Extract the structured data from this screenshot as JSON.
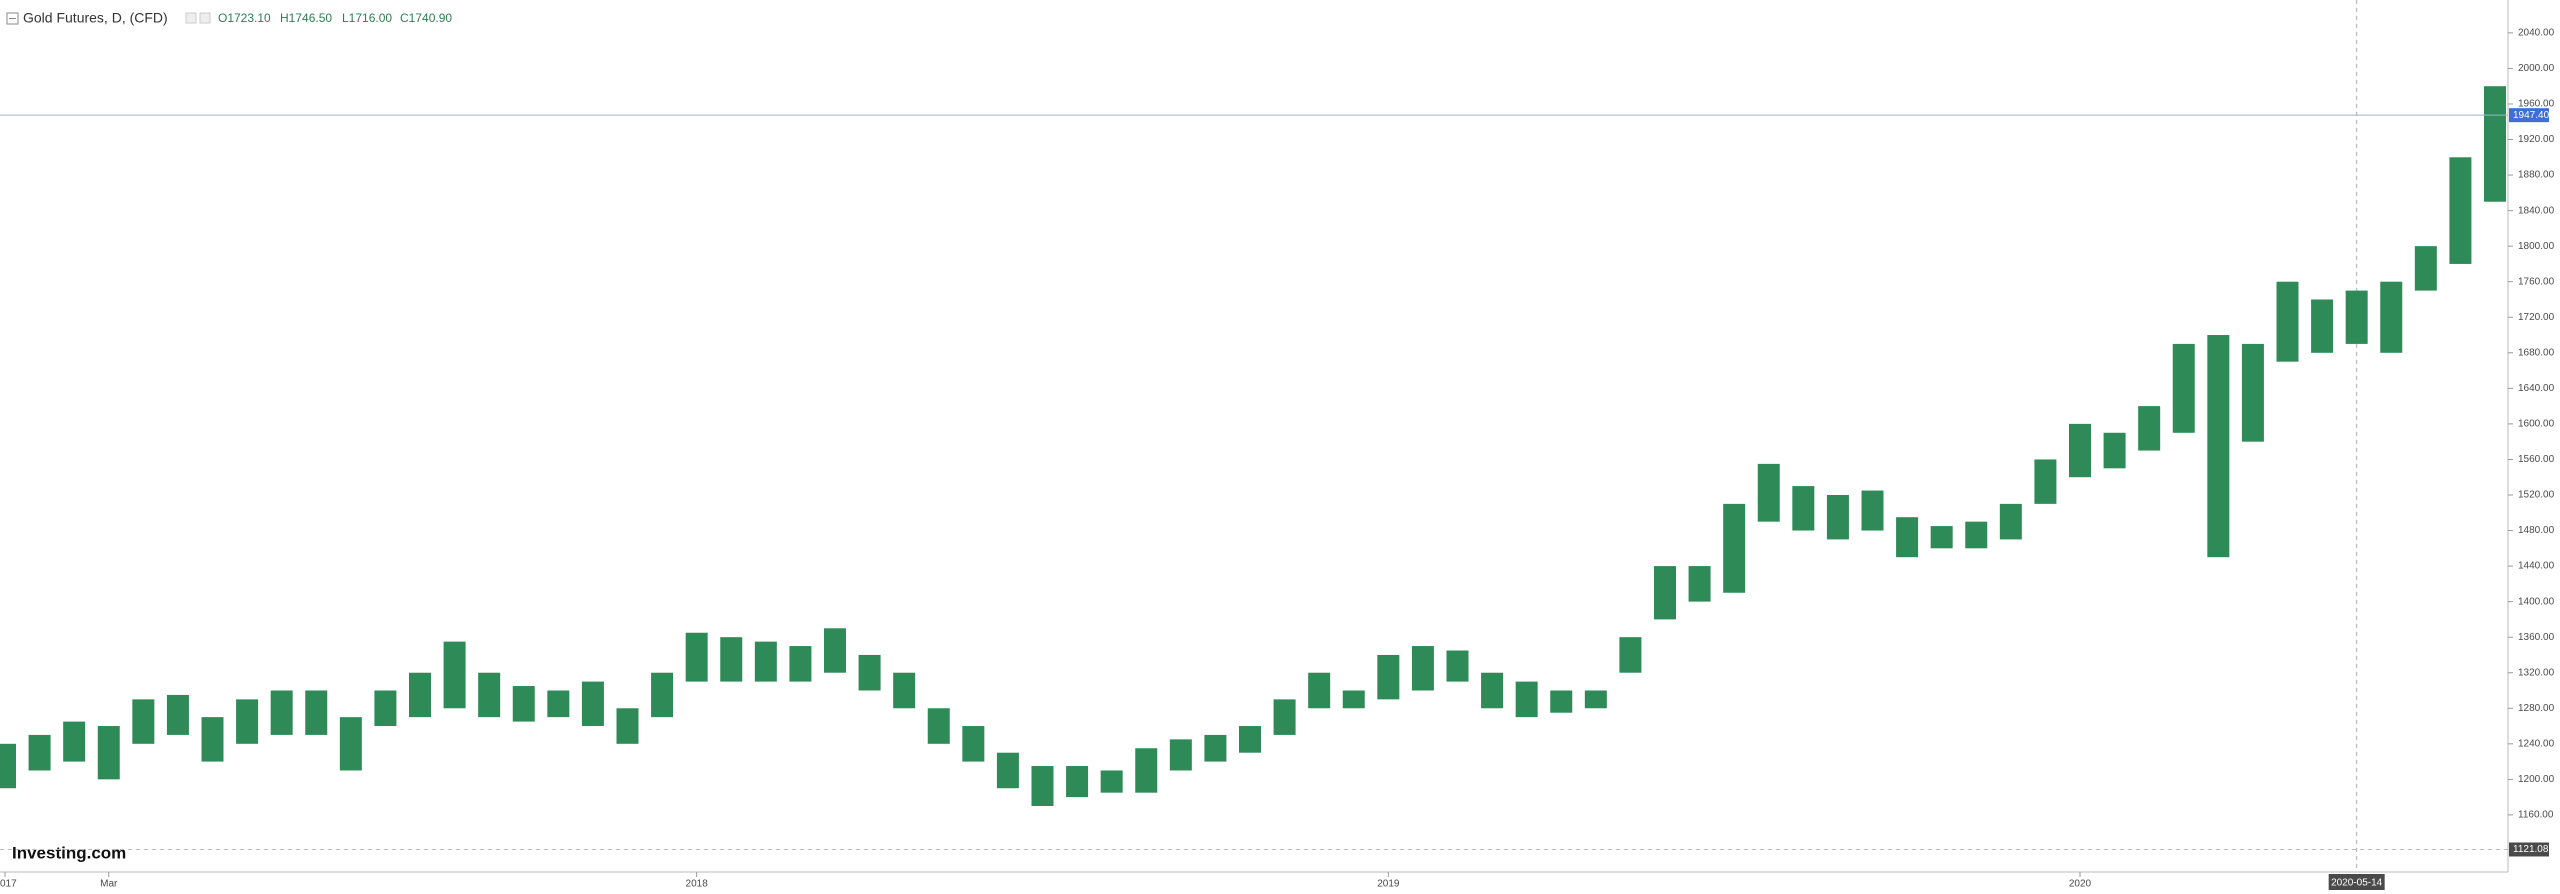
{
  "chart_data": {
    "type": "candlestick",
    "title": "Gold Futures, D, (CFD)",
    "ohlc_labels": [
      "O1723.10",
      "H1746.50",
      "L1716.00",
      "C1740.90"
    ],
    "watermark": "Investing.com",
    "color": "#2e8b57",
    "categories": [
      "017",
      null,
      null,
      "Mar",
      null,
      null,
      null,
      null,
      null,
      null,
      null,
      null,
      null,
      null,
      null,
      null,
      null,
      null,
      null,
      null,
      "2018",
      null,
      null,
      null,
      null,
      null,
      null,
      null,
      null,
      null,
      null,
      null,
      null,
      null,
      null,
      null,
      null,
      null,
      null,
      null,
      "2019",
      null,
      null,
      null,
      null,
      null,
      null,
      null,
      null,
      null,
      null,
      null,
      null,
      null,
      null,
      null,
      null,
      null,
      null,
      null,
      "2020",
      null,
      null,
      null,
      null,
      null,
      null,
      null,
      "2020-05-14",
      null,
      null,
      null,
      null
    ],
    "low": [
      1190,
      1210,
      1220,
      1200,
      1240,
      1250,
      1220,
      1240,
      1250,
      1250,
      1210,
      1260,
      1270,
      1280,
      1270,
      1265,
      1270,
      1260,
      1240,
      1270,
      1310,
      1310,
      1310,
      1310,
      1320,
      1300,
      1280,
      1240,
      1220,
      1190,
      1170,
      1180,
      1185,
      1185,
      1210,
      1220,
      1230,
      1250,
      1280,
      1280,
      1290,
      1300,
      1310,
      1280,
      1270,
      1275,
      1280,
      1320,
      1380,
      1400,
      1410,
      1490,
      1480,
      1470,
      1480,
      1450,
      1460,
      1460,
      1470,
      1510,
      1540,
      1550,
      1570,
      1590,
      1450,
      1580,
      1670,
      1680,
      1690,
      1680,
      1750,
      1780,
      1850
    ],
    "high": [
      1240,
      1250,
      1265,
      1260,
      1290,
      1295,
      1270,
      1290,
      1300,
      1300,
      1270,
      1300,
      1320,
      1355,
      1320,
      1305,
      1300,
      1310,
      1280,
      1320,
      1365,
      1360,
      1355,
      1350,
      1370,
      1340,
      1320,
      1280,
      1260,
      1230,
      1215,
      1215,
      1210,
      1235,
      1245,
      1250,
      1260,
      1290,
      1320,
      1300,
      1340,
      1350,
      1345,
      1320,
      1310,
      1300,
      1300,
      1360,
      1440,
      1440,
      1510,
      1555,
      1530,
      1520,
      1525,
      1495,
      1485,
      1490,
      1510,
      1560,
      1600,
      1590,
      1620,
      1690,
      1700,
      1690,
      1760,
      1740,
      1750,
      1760,
      1800,
      1900,
      1980
    ],
    "ylim": [
      1098,
      2077
    ],
    "yticks": [
      {
        "value": 1160,
        "label": "1160.00"
      },
      {
        "value": 1200,
        "label": "1200.00"
      },
      {
        "value": 1240,
        "label": "1240.00"
      },
      {
        "value": 1280,
        "label": "1280.00"
      },
      {
        "value": 1320,
        "label": "1320.00"
      },
      {
        "value": 1360,
        "label": "1360.00"
      },
      {
        "value": 1400,
        "label": "1400.00"
      },
      {
        "value": 1440,
        "label": "1440.00"
      },
      {
        "value": 1480,
        "label": "1480.00"
      },
      {
        "value": 1520,
        "label": "1520.00"
      },
      {
        "value": 1560,
        "label": "1560.00"
      },
      {
        "value": 1600,
        "label": "1600.00"
      },
      {
        "value": 1640,
        "label": "1640.00"
      },
      {
        "value": 1680,
        "label": "1680.00"
      },
      {
        "value": 1720,
        "label": "1720.00"
      },
      {
        "value": 1760,
        "label": "1760.00"
      },
      {
        "value": 1800,
        "label": "1800.00"
      },
      {
        "value": 1840,
        "label": "1840.00"
      },
      {
        "value": 1880,
        "label": "1880.00"
      },
      {
        "value": 1920,
        "label": "1920.00"
      },
      {
        "value": 1960,
        "label": "1960.00"
      },
      {
        "value": 2000,
        "label": "2000.00"
      },
      {
        "value": 2040,
        "label": "2040.00"
      }
    ],
    "price_line": {
      "value": 1947.4,
      "label": "1947.40"
    },
    "low_line": {
      "value": 1121.08,
      "label": "1121.08"
    },
    "grid": false
  }
}
